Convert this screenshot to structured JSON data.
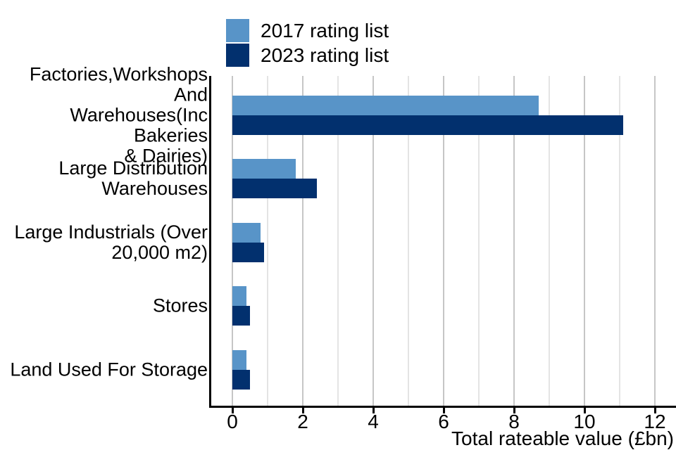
{
  "colors": {
    "series_2017": "#5894C8",
    "series_2023": "#02306E",
    "grid_major": "#C6C6C6",
    "grid_minor": "#E4E4E4",
    "axis": "#000000",
    "text": "#000000",
    "background": "#FFFFFF"
  },
  "legend": {
    "items": [
      {
        "label": "2017 rating list",
        "color": "#5894C8"
      },
      {
        "label": "2023 rating list",
        "color": "#02306E"
      }
    ]
  },
  "chart_data": {
    "type": "bar",
    "orientation": "horizontal",
    "title": "",
    "xlabel": "Total rateable value (£bn)",
    "ylabel": "",
    "categories": [
      "Factories,Workshops And Warehouses(Inc Bakeries & Dairies)",
      "Large Distribution Warehouses",
      "Large Industrials (Over 20,000 m2)",
      "Stores",
      "Land Used For Storage"
    ],
    "category_label_lines": [
      [
        "Factories,Workshops And",
        "Warehouses(Inc Bakeries",
        "& Dairies)"
      ],
      [
        "Large Distribution",
        "Warehouses"
      ],
      [
        "Large Industrials (Over",
        "20,000 m2)"
      ],
      [
        "Stores"
      ],
      [
        "Land Used For Storage"
      ]
    ],
    "series": [
      {
        "name": "2017 rating list",
        "values": [
          8.7,
          1.8,
          0.8,
          0.4,
          0.4
        ]
      },
      {
        "name": "2023 rating list",
        "values": [
          11.1,
          2.4,
          0.9,
          0.5,
          0.5
        ]
      }
    ],
    "x_ticks": [
      0,
      2,
      4,
      6,
      8,
      10,
      12
    ],
    "xlim": [
      0,
      12.6
    ],
    "grid": "vertical gridlines at every 1 unit; darker at even (labeled) values",
    "legend_position": "top-left"
  }
}
